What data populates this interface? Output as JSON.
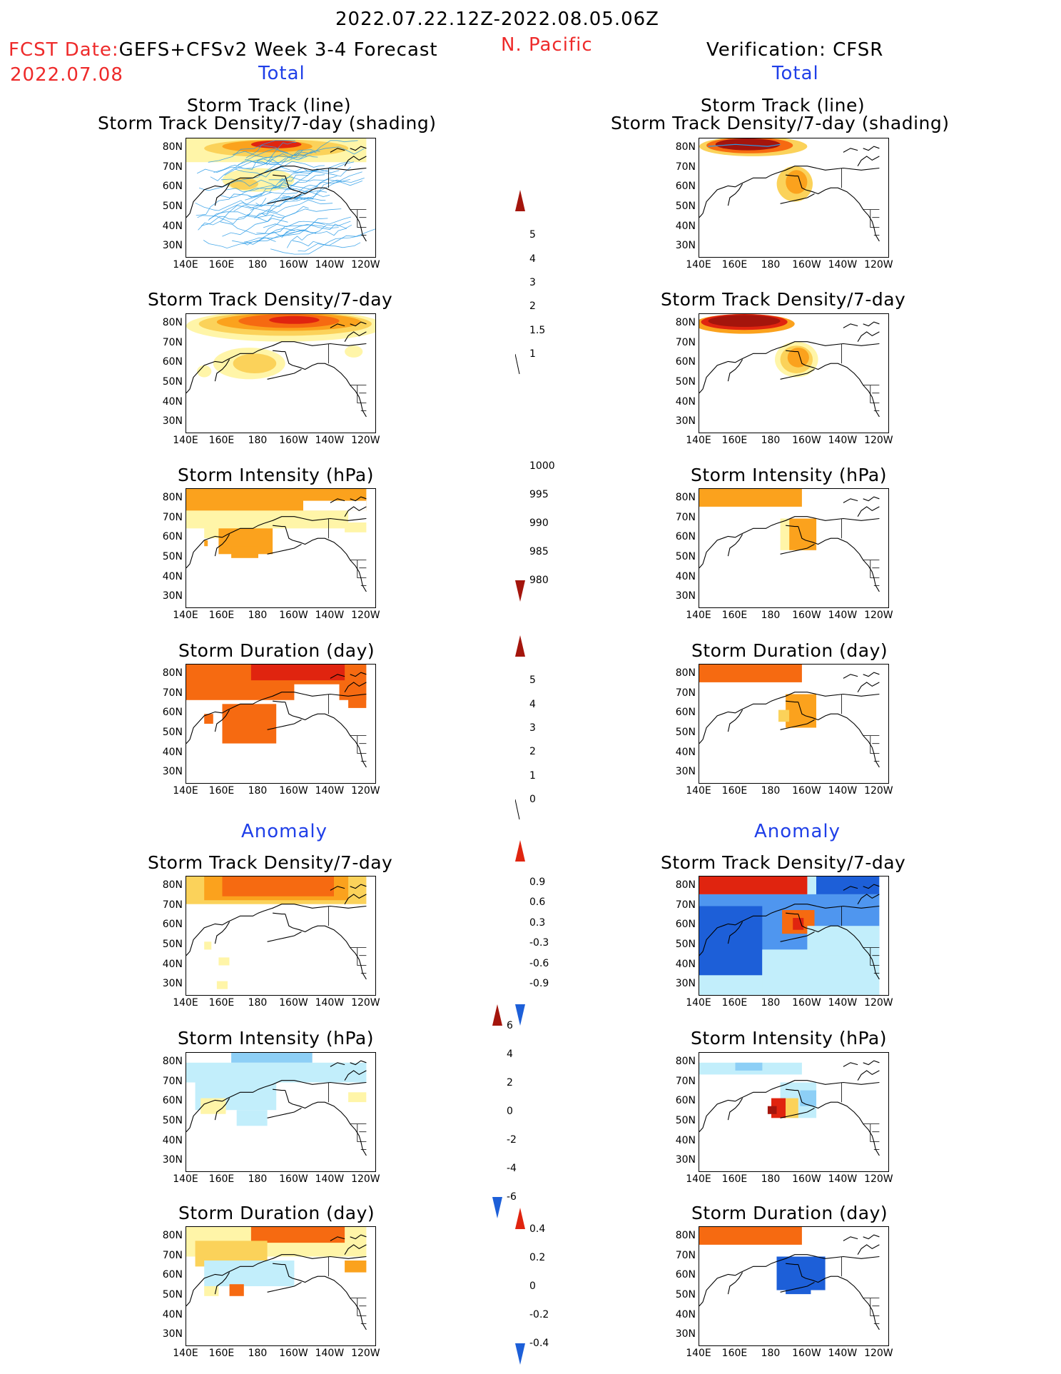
{
  "header": {
    "date_range": "2022.07.22.12Z-2022.08.05.06Z",
    "fcst_label": "FCST Date:",
    "fcst_model": "GEFS+CFSv2 Week 3-4 Forecast",
    "fcst_date": "2022.07.08",
    "region": "N. Pacific",
    "verification": "Verification: CFSR"
  },
  "sections": {
    "left_total": "Total",
    "right_total": "Total",
    "left_anomaly": "Anomaly",
    "right_anomaly": "Anomaly"
  },
  "panel_titles": {
    "track_line": "Storm Track (line)",
    "track_shading": "Storm Track Density/7-day (shading)",
    "density": "Storm Track Density/7-day",
    "intensity": "Storm Intensity (hPa)",
    "duration": "Storm Duration (day)"
  },
  "axes": {
    "lat_ticks": [
      "80N",
      "70N",
      "60N",
      "50N",
      "40N",
      "30N"
    ],
    "lon_ticks": [
      "140E",
      "160E",
      "180",
      "160W",
      "140W",
      "120W"
    ]
  },
  "colorbars": {
    "density_total": [
      "1",
      "1.5",
      "2",
      "3",
      "4",
      "5"
    ],
    "intensity_total": [
      "1000",
      "995",
      "990",
      "985",
      "980"
    ],
    "duration_total": [
      "0",
      "1",
      "2",
      "3",
      "4",
      "5"
    ],
    "density_anom": [
      "-0.9",
      "-0.6",
      "-0.3",
      "0.3",
      "0.6",
      "0.9"
    ],
    "intensity_anom": [
      "-6",
      "-4",
      "-2",
      "0",
      "2",
      "4",
      "6"
    ],
    "duration_anom": [
      "-0.4",
      "-0.2",
      "0",
      "0.2",
      "0.4"
    ]
  },
  "colors": {
    "light_yellow": "#fff5a8",
    "yellow": "#fbd25a",
    "orange": "#fba21d",
    "dark_orange": "#f66a11",
    "red": "#e0240f",
    "dark_red": "#a4150c",
    "light_blue": "#c2eefb",
    "sky_blue": "#8dcff6",
    "blue": "#4f96ef",
    "dark_blue": "#1d5fd8",
    "track_line": "#2a9be6"
  }
}
